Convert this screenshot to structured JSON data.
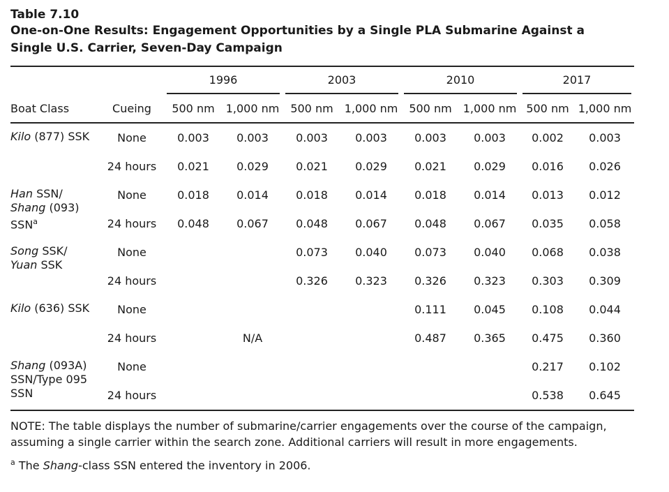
{
  "table_number": "Table 7.10",
  "title": "One-on-One Results: Engagement Opportunities by a Single PLA Submarine Against a Single U.S. Carrier, Seven-Day Campaign",
  "years": [
    "1996",
    "2003",
    "2010",
    "2017"
  ],
  "headers": {
    "boat_class": "Boat Class",
    "cueing": "Cueing",
    "range_500": "500 nm",
    "range_1000": "1,000 nm"
  },
  "boats": [
    {
      "name_italic": "Kilo",
      "name_rest": " (877) SSK"
    },
    {
      "line1_italic": "Han",
      "line1_rest": " SSN/",
      "line2_italic": "Shang",
      "line2_rest": " (093)",
      "line3": "SSN",
      "sup": "a"
    },
    {
      "line1_italic": "Song",
      "line1_rest": " SSK/",
      "line2_italic": "Yuan",
      "line2_rest": " SSK"
    },
    {
      "name_italic": "Kilo",
      "name_rest": " (636) SSK"
    },
    {
      "line1_italic": "Shang",
      "line1_rest": " (093A)",
      "line2": "SSN/Type 095",
      "line3": "SSN"
    }
  ],
  "cueing": {
    "none": "None",
    "h24": "24 hours"
  },
  "rows": [
    [
      "0.003",
      "0.003",
      "0.003",
      "0.003",
      "0.003",
      "0.003",
      "0.002",
      "0.003"
    ],
    [
      "0.021",
      "0.029",
      "0.021",
      "0.029",
      "0.021",
      "0.029",
      "0.016",
      "0.026"
    ],
    [
      "0.018",
      "0.014",
      "0.018",
      "0.014",
      "0.018",
      "0.014",
      "0.013",
      "0.012"
    ],
    [
      "0.048",
      "0.067",
      "0.048",
      "0.067",
      "0.048",
      "0.067",
      "0.035",
      "0.058"
    ],
    [
      "",
      "",
      "0.073",
      "0.040",
      "0.073",
      "0.040",
      "0.068",
      "0.038"
    ],
    [
      "",
      "",
      "0.326",
      "0.323",
      "0.326",
      "0.323",
      "0.303",
      "0.309"
    ],
    [
      "",
      "",
      "",
      "",
      "0.111",
      "0.045",
      "0.108",
      "0.044"
    ],
    [
      "",
      "",
      "",
      "",
      "0.487",
      "0.365",
      "0.475",
      "0.360"
    ],
    [
      "",
      "",
      "",
      "",
      "",
      "",
      "0.217",
      "0.102"
    ],
    [
      "",
      "",
      "",
      "",
      "",
      "",
      "0.538",
      "0.645"
    ]
  ],
  "na_label": "N/A",
  "note": "NOTE: The table displays the number of submarine/carrier engagements over the course of the campaign, assuming a single carrier within the search zone. Additional carriers will result in more engagements.",
  "footnote": {
    "marker": "a",
    "text_before": " The ",
    "italic": "Shang",
    "text_after": "-class SSN entered the inventory in 2006."
  }
}
